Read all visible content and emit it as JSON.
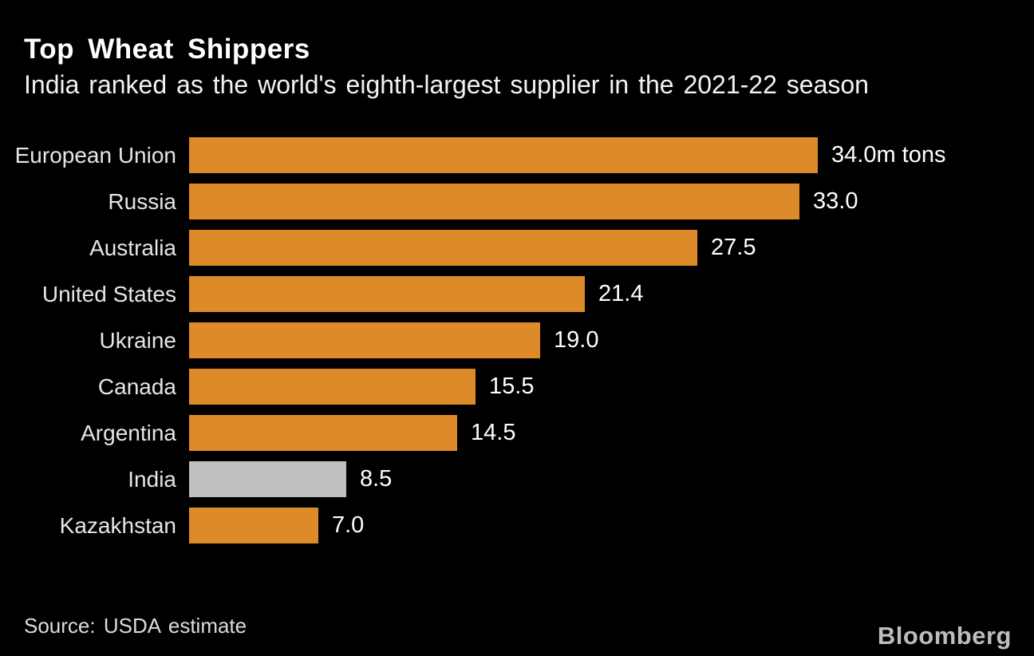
{
  "header": {
    "title": "Top Wheat Shippers",
    "subtitle": "India ranked as the world's eighth-largest supplier in the 2021-22 season"
  },
  "chart_data": {
    "type": "bar",
    "orientation": "horizontal",
    "title": "Top Wheat Shippers",
    "subtitle": "India ranked as the world's eighth-largest supplier in the 2021-22 season",
    "categories": [
      "European Union",
      "Russia",
      "Australia",
      "United States",
      "Ukraine",
      "Canada",
      "Argentina",
      "India",
      "Kazakhstan"
    ],
    "values": [
      34.0,
      33.0,
      27.5,
      21.4,
      19.0,
      15.5,
      14.5,
      8.5,
      7.0
    ],
    "value_labels": [
      "34.0m tons",
      "33.0",
      "27.5",
      "21.4",
      "19.0",
      "15.5",
      "14.5",
      "8.5",
      "7.0"
    ],
    "unit": "m tons",
    "xlabel": "",
    "ylabel": "",
    "xlim": [
      0,
      34
    ],
    "grid": false,
    "legend": false,
    "highlight_category": "India",
    "bar_color": "#DD8A28",
    "highlight_color": "#BFBFBF"
  },
  "footer": {
    "source": "Source: USDA estimate",
    "brand": "Bloomberg"
  },
  "colors": {
    "background": "#000000",
    "bar": "#DD8A28",
    "highlight_bar": "#BFBFBF",
    "title_text": "#FFFFFF",
    "category_text": "#E6E6E6",
    "value_text": "#FFFFFF",
    "source_text": "#DCDCDC",
    "brand_text": "#BDBDBD"
  }
}
